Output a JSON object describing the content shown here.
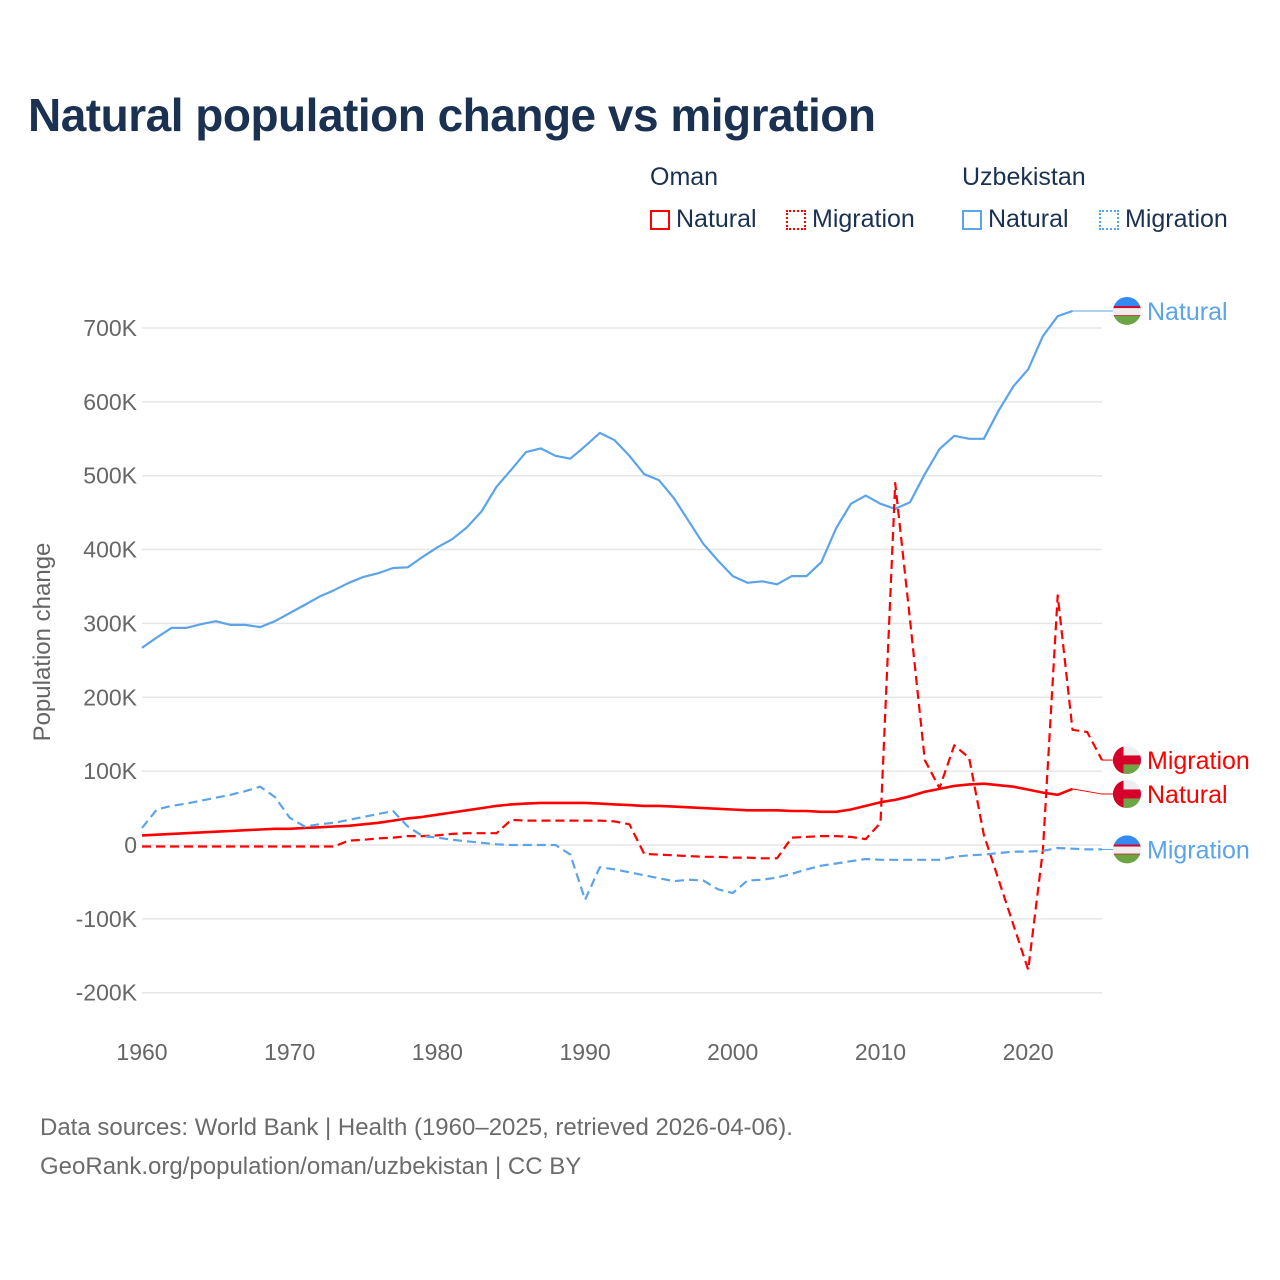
{
  "chart_data": {
    "type": "line",
    "title": "Natural population change vs migration",
    "ylabel": "Population change",
    "xlabel": "",
    "xlim": [
      1960,
      2025
    ],
    "ylim": [
      -200000,
      700000
    ],
    "x_ticks": [
      1960,
      1970,
      1980,
      1990,
      2000,
      2010,
      2020
    ],
    "x_tick_labels": [
      "1960",
      "1970",
      "1980",
      "1990",
      "2000",
      "2010",
      "2020"
    ],
    "y_ticks": [
      -200000,
      -100000,
      0,
      100000,
      200000,
      300000,
      400000,
      500000,
      600000,
      700000
    ],
    "y_tick_labels": [
      "-200K",
      "-100K",
      "0",
      "100K",
      "200K",
      "300K",
      "400K",
      "500K",
      "600K",
      "700K"
    ],
    "grid": true,
    "legend_placement": "top-right",
    "legend": {
      "groups": [
        {
          "country": "Oman",
          "items": [
            "Natural",
            "Migration"
          ]
        },
        {
          "country": "Uzbekistan",
          "items": [
            "Natural",
            "Migration"
          ]
        }
      ]
    },
    "colors": {
      "Oman": "#ff0000",
      "Uzbekistan": "#5ba4ea"
    },
    "series": [
      {
        "name": "Uzbekistan Natural",
        "country": "Uzbekistan",
        "kind": "Natural",
        "label": "Natural",
        "dash": false,
        "start_year": 1960,
        "values": [
          267000,
          281000,
          294000,
          294000,
          299000,
          303000,
          298000,
          298000,
          295000,
          303000,
          314000,
          325000,
          336000,
          345000,
          355000,
          363000,
          368000,
          375000,
          376000,
          390000,
          403000,
          414000,
          430000,
          452000,
          485000,
          508000,
          532000,
          537000,
          527000,
          523000,
          540000,
          558000,
          548000,
          527000,
          502000,
          494000,
          470000,
          439000,
          408000,
          385000,
          364000,
          355000,
          357000,
          353000,
          364000,
          364000,
          383000,
          429000,
          462000,
          473000,
          462000,
          455000,
          464000,
          502000,
          536000,
          554000,
          550000,
          550000,
          588000,
          621000,
          644000,
          689000,
          716000,
          723000
        ]
      },
      {
        "name": "Oman Migration",
        "country": "Oman",
        "kind": "Migration",
        "label": "Migration",
        "dash": true,
        "start_year": 1960,
        "values": [
          -2000,
          -2000,
          -2000,
          -2000,
          -2000,
          -2000,
          -2000,
          -2000,
          -2000,
          -2000,
          -2000,
          -2000,
          -2000,
          -2000,
          6000,
          7000,
          9000,
          10000,
          12000,
          12000,
          13000,
          15000,
          16000,
          16000,
          16000,
          34000,
          33000,
          33000,
          33000,
          33000,
          33000,
          33000,
          32000,
          28000,
          -12000,
          -13000,
          -14000,
          -15000,
          -16000,
          -16000,
          -17000,
          -17000,
          -18000,
          -18000,
          10000,
          11000,
          12000,
          12000,
          11000,
          8000,
          30000,
          490000,
          305000,
          115000,
          77000,
          135000,
          118000,
          14000,
          -47000,
          -108000,
          -169000,
          -7000,
          338000,
          156000,
          153000,
          115000
        ]
      },
      {
        "name": "Oman Natural",
        "country": "Oman",
        "kind": "Natural",
        "label": "Natural",
        "dash": false,
        "start_year": 1960,
        "values": [
          13000,
          14000,
          15000,
          16000,
          17000,
          18000,
          19000,
          20000,
          21000,
          22000,
          22000,
          23000,
          24000,
          25000,
          26000,
          28000,
          30000,
          33000,
          36000,
          38000,
          41000,
          44000,
          47000,
          50000,
          53000,
          55000,
          56000,
          57000,
          57000,
          57000,
          57000,
          56000,
          55000,
          54000,
          53000,
          53000,
          52000,
          51000,
          50000,
          49000,
          48000,
          47000,
          47000,
          47000,
          46000,
          46000,
          45000,
          45000,
          48000,
          53000,
          58000,
          61000,
          66000,
          72000,
          76000,
          80000,
          82000,
          83000,
          81000,
          79000,
          75000,
          71000,
          68000,
          76000
        ]
      },
      {
        "name": "Uzbekistan Migration",
        "country": "Uzbekistan",
        "kind": "Migration",
        "label": "Migration",
        "dash": true,
        "start_year": 1960,
        "values": [
          23000,
          48000,
          53000,
          56000,
          60000,
          64000,
          68000,
          73000,
          79000,
          65000,
          37000,
          25000,
          28000,
          30000,
          34000,
          38000,
          42000,
          46000,
          25000,
          12000,
          10000,
          7000,
          5000,
          3000,
          1000,
          0,
          0,
          0,
          0,
          -13000,
          -74000,
          -30000,
          -33000,
          -37000,
          -41000,
          -45000,
          -49000,
          -47000,
          -48000,
          -60000,
          -65000,
          -48000,
          -47000,
          -44000,
          -39000,
          -33000,
          -28000,
          -25000,
          -22000,
          -19000,
          -20000,
          -20000,
          -20000,
          -20000,
          -20000,
          -16000,
          -14000,
          -13000,
          -11000,
          -9000,
          -9000,
          -8000,
          -4000,
          -5000,
          -6000,
          -6000
        ]
      }
    ]
  },
  "footer": {
    "line1": "Data sources: World Bank | Health (1960–2025, retrieved 2026-04-06).",
    "line2": "GeoRank.org/population/oman/uzbekistan | CC BY"
  }
}
